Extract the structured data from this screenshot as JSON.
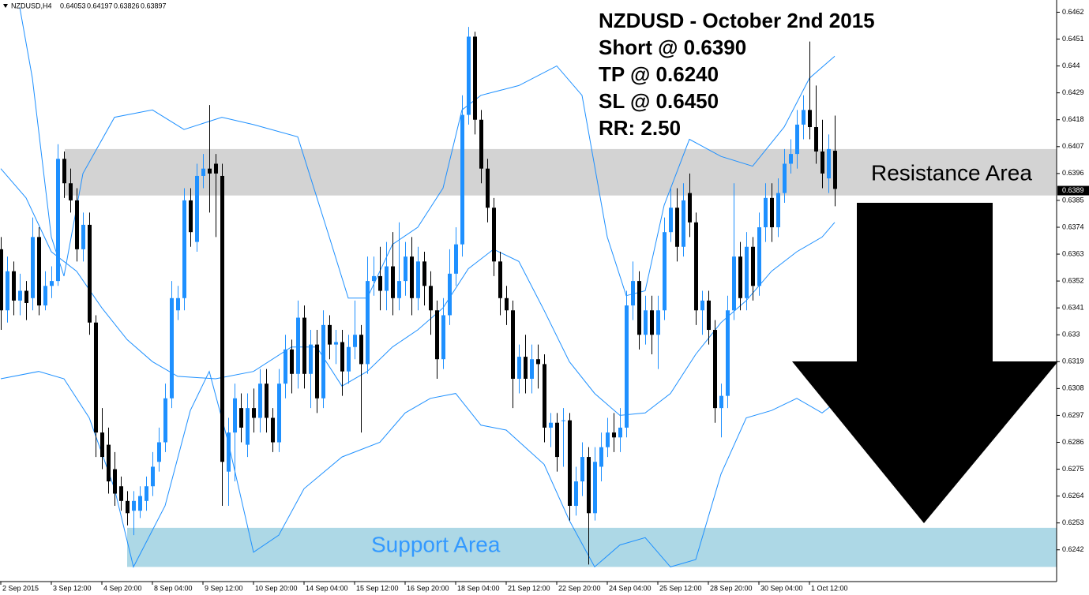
{
  "chart_data": {
    "type": "candlestick",
    "symbol": "NZDUSD,H4",
    "header_ohlc": [
      0.64053,
      0.64197,
      0.63826,
      0.63897
    ],
    "annotations": [
      "NZDUSD - October 2nd 2015",
      "Short @ 0.6390",
      "TP @ 0.6240",
      "SL @ 0.6450",
      "RR: 2.50"
    ],
    "resistance_label": "Resistance Area",
    "support_label": "Support Area",
    "resistance_zone": [
      0.6387,
      0.6406
    ],
    "support_zone": [
      0.6235,
      0.6251
    ],
    "resistance_color": "#d3d3d3",
    "support_color": "#add8e6",
    "support_label_color": "#3399ff",
    "current_price": 0.6389,
    "up_color": "#1e90ff",
    "down_color": "#000000",
    "band_color": "#1e90ff",
    "xlim": [
      -0.125,
      167.125
    ],
    "ylim": [
      0.6229,
      0.6467
    ],
    "xticks": [
      {
        "value": 0,
        "label": "2 Sep 2015"
      },
      {
        "value": 8,
        "label": "3 Sep 12:00"
      },
      {
        "value": 16,
        "label": "4 Sep 20:00"
      },
      {
        "value": 24,
        "label": "8 Sep 04:00"
      },
      {
        "value": 32,
        "label": "9 Sep 12:00"
      },
      {
        "value": 40,
        "label": "10 Sep 20:00"
      },
      {
        "value": 48,
        "label": "14 Sep 04:00"
      },
      {
        "value": 56,
        "label": "15 Sep 12:00"
      },
      {
        "value": 64,
        "label": "16 Sep 20:00"
      },
      {
        "value": 72,
        "label": "18 Sep 04:00"
      },
      {
        "value": 80,
        "label": "21 Sep 12:00"
      },
      {
        "value": 88,
        "label": "22 Sep 20:00"
      },
      {
        "value": 96,
        "label": "24 Sep 04:00"
      },
      {
        "value": 104,
        "label": "25 Sep 12:00"
      },
      {
        "value": 112,
        "label": "28 Sep 20:00"
      },
      {
        "value": 120,
        "label": "30 Sep 04:00"
      },
      {
        "value": 128,
        "label": "1 Oct 12:00"
      }
    ],
    "yticks": [
      0.6462,
      0.6451,
      0.644,
      0.6429,
      0.6418,
      0.6407,
      0.6396,
      0.6385,
      0.6374,
      0.6363,
      0.6352,
      0.6341,
      0.633,
      0.6319,
      0.6308,
      0.6297,
      0.6286,
      0.6275,
      0.6264,
      0.6253,
      0.6242
    ],
    "candles": [
      [
        0.6365,
        0.637,
        0.6332,
        0.634
      ],
      [
        0.634,
        0.6362,
        0.6335,
        0.6356
      ],
      [
        0.6356,
        0.636,
        0.6338,
        0.6344
      ],
      [
        0.6344,
        0.6355,
        0.6338,
        0.6348
      ],
      [
        0.6348,
        0.6352,
        0.6336,
        0.6343
      ],
      [
        0.6345,
        0.6378,
        0.634,
        0.637
      ],
      [
        0.637,
        0.6374,
        0.6338,
        0.6342
      ],
      [
        0.6342,
        0.6356,
        0.634,
        0.635
      ],
      [
        0.635,
        0.6358,
        0.6345,
        0.6352
      ],
      [
        0.6352,
        0.6408,
        0.635,
        0.6402
      ],
      [
        0.6402,
        0.6405,
        0.6386,
        0.6392
      ],
      [
        0.6392,
        0.6398,
        0.638,
        0.6385
      ],
      [
        0.6385,
        0.639,
        0.636,
        0.6365
      ],
      [
        0.6365,
        0.638,
        0.636,
        0.6375
      ],
      [
        0.6375,
        0.638,
        0.633,
        0.6335
      ],
      [
        0.6335,
        0.6338,
        0.628,
        0.629
      ],
      [
        0.629,
        0.63,
        0.6275,
        0.628
      ],
      [
        0.6285,
        0.6292,
        0.6265,
        0.627
      ],
      [
        0.6275,
        0.6282,
        0.626,
        0.6265
      ],
      [
        0.6268,
        0.6272,
        0.6258,
        0.6262
      ],
      [
        0.6262,
        0.6266,
        0.6252,
        0.6257
      ],
      [
        0.6258,
        0.6266,
        0.6248,
        0.6262
      ],
      [
        0.6258,
        0.6268,
        0.6255,
        0.6264
      ],
      [
        0.6262,
        0.6272,
        0.6258,
        0.6268
      ],
      [
        0.6268,
        0.6282,
        0.6264,
        0.6276
      ],
      [
        0.6278,
        0.6292,
        0.6274,
        0.6286
      ],
      [
        0.6286,
        0.631,
        0.6282,
        0.6304
      ],
      [
        0.6304,
        0.6352,
        0.63,
        0.6345
      ],
      [
        0.634,
        0.635,
        0.6336,
        0.6345
      ],
      [
        0.6345,
        0.639,
        0.634,
        0.6385
      ],
      [
        0.6385,
        0.639,
        0.6366,
        0.6372
      ],
      [
        0.6368,
        0.64,
        0.6364,
        0.6395
      ],
      [
        0.6395,
        0.6404,
        0.639,
        0.6398
      ],
      [
        0.6398,
        0.6424,
        0.638,
        0.6396
      ],
      [
        0.64,
        0.6404,
        0.637,
        0.6396
      ],
      [
        0.6395,
        0.64,
        0.626,
        0.6278
      ],
      [
        0.6274,
        0.6296,
        0.626,
        0.629
      ],
      [
        0.629,
        0.631,
        0.627,
        0.6304
      ],
      [
        0.63,
        0.6306,
        0.6286,
        0.6292
      ],
      [
        0.6285,
        0.6306,
        0.628,
        0.63
      ],
      [
        0.63,
        0.6308,
        0.629,
        0.6296
      ],
      [
        0.6296,
        0.6316,
        0.629,
        0.631
      ],
      [
        0.631,
        0.6316,
        0.629,
        0.6296
      ],
      [
        0.6296,
        0.63,
        0.6282,
        0.6286
      ],
      [
        0.6286,
        0.6316,
        0.6282,
        0.631
      ],
      [
        0.631,
        0.633,
        0.6304,
        0.6324
      ],
      [
        0.6324,
        0.6328,
        0.6306,
        0.6314
      ],
      [
        0.6314,
        0.6344,
        0.6308,
        0.6337
      ],
      [
        0.6337,
        0.6342,
        0.6308,
        0.6314
      ],
      [
        0.6314,
        0.6332,
        0.63,
        0.6326
      ],
      [
        0.6326,
        0.6332,
        0.6298,
        0.6304
      ],
      [
        0.6304,
        0.634,
        0.63,
        0.6334
      ],
      [
        0.6334,
        0.6338,
        0.632,
        0.6326
      ],
      [
        0.6326,
        0.6332,
        0.6318,
        0.6327
      ],
      [
        0.6327,
        0.6332,
        0.6305,
        0.6315
      ],
      [
        0.6315,
        0.633,
        0.631,
        0.6325
      ],
      [
        0.6325,
        0.6344,
        0.632,
        0.633
      ],
      [
        0.633,
        0.6334,
        0.629,
        0.6318
      ],
      [
        0.6318,
        0.6362,
        0.6314,
        0.6352
      ],
      [
        0.6352,
        0.6362,
        0.6346,
        0.6354
      ],
      [
        0.6354,
        0.6366,
        0.634,
        0.6348
      ],
      [
        0.6348,
        0.6368,
        0.634,
        0.6358
      ],
      [
        0.6358,
        0.6372,
        0.6338,
        0.6345
      ],
      [
        0.6345,
        0.6376,
        0.634,
        0.6352
      ],
      [
        0.6352,
        0.6368,
        0.6346,
        0.6362
      ],
      [
        0.6362,
        0.637,
        0.6338,
        0.6345
      ],
      [
        0.6345,
        0.6366,
        0.634,
        0.636
      ],
      [
        0.636,
        0.6364,
        0.6342,
        0.635
      ],
      [
        0.635,
        0.6356,
        0.633,
        0.634
      ],
      [
        0.634,
        0.6344,
        0.6312,
        0.632
      ],
      [
        0.632,
        0.6345,
        0.6316,
        0.6338
      ],
      [
        0.6338,
        0.6365,
        0.6334,
        0.6355
      ],
      [
        0.6355,
        0.6374,
        0.635,
        0.6367
      ],
      [
        0.6367,
        0.6428,
        0.6362,
        0.642
      ],
      [
        0.642,
        0.6456,
        0.6416,
        0.6452
      ],
      [
        0.6452,
        0.6454,
        0.6412,
        0.6418
      ],
      [
        0.6418,
        0.6422,
        0.6392,
        0.6398
      ],
      [
        0.6398,
        0.6402,
        0.6376,
        0.6382
      ],
      [
        0.6382,
        0.6386,
        0.6354,
        0.636
      ],
      [
        0.636,
        0.6364,
        0.6338,
        0.6345
      ],
      [
        0.6345,
        0.635,
        0.6334,
        0.634
      ],
      [
        0.634,
        0.6344,
        0.63,
        0.6312
      ],
      [
        0.6312,
        0.6326,
        0.6306,
        0.6321
      ],
      [
        0.6321,
        0.633,
        0.6306,
        0.6312
      ],
      [
        0.6312,
        0.6326,
        0.6306,
        0.632
      ],
      [
        0.632,
        0.6326,
        0.6308,
        0.6318
      ],
      [
        0.6318,
        0.6322,
        0.6286,
        0.6292
      ],
      [
        0.6292,
        0.6298,
        0.6284,
        0.6294
      ],
      [
        0.6294,
        0.6298,
        0.6274,
        0.628
      ],
      [
        0.6295,
        0.63,
        0.6276,
        0.6295
      ],
      [
        0.6295,
        0.6298,
        0.6254,
        0.626
      ],
      [
        0.626,
        0.6276,
        0.6256,
        0.627
      ],
      [
        0.627,
        0.6286,
        0.6264,
        0.628
      ],
      [
        0.628,
        0.6284,
        0.6236,
        0.6257
      ],
      [
        0.6257,
        0.6284,
        0.6254,
        0.6278
      ],
      [
        0.6276,
        0.629,
        0.627,
        0.6284
      ],
      [
        0.6284,
        0.6296,
        0.628,
        0.629
      ],
      [
        0.629,
        0.6298,
        0.6282,
        0.6288
      ],
      [
        0.6288,
        0.63,
        0.6282,
        0.6292
      ],
      [
        0.6292,
        0.6348,
        0.6288,
        0.6342
      ],
      [
        0.6342,
        0.636,
        0.6336,
        0.6352
      ],
      [
        0.6352,
        0.6356,
        0.6324,
        0.633
      ],
      [
        0.633,
        0.6346,
        0.6326,
        0.634
      ],
      [
        0.634,
        0.6346,
        0.6322,
        0.633
      ],
      [
        0.633,
        0.6346,
        0.6316,
        0.634
      ],
      [
        0.634,
        0.6378,
        0.6336,
        0.6372
      ],
      [
        0.6372,
        0.639,
        0.6368,
        0.6382
      ],
      [
        0.6382,
        0.639,
        0.636,
        0.6366
      ],
      [
        0.6366,
        0.6392,
        0.6362,
        0.6385
      ],
      [
        0.6388,
        0.6396,
        0.637,
        0.6376
      ],
      [
        0.6376,
        0.638,
        0.6334,
        0.634
      ],
      [
        0.634,
        0.6348,
        0.633,
        0.6344
      ],
      [
        0.6344,
        0.6348,
        0.6326,
        0.6332
      ],
      [
        0.6332,
        0.6336,
        0.6294,
        0.63
      ],
      [
        0.63,
        0.631,
        0.6288,
        0.6305
      ],
      [
        0.6305,
        0.6346,
        0.63,
        0.634
      ],
      [
        0.634,
        0.6392,
        0.6336,
        0.6362
      ],
      [
        0.6362,
        0.6368,
        0.634,
        0.6345
      ],
      [
        0.6345,
        0.6372,
        0.634,
        0.6366
      ],
      [
        0.6366,
        0.637,
        0.6344,
        0.635
      ],
      [
        0.635,
        0.638,
        0.6346,
        0.6374
      ],
      [
        0.6374,
        0.6392,
        0.6368,
        0.6386
      ],
      [
        0.6386,
        0.6392,
        0.6368,
        0.6374
      ],
      [
        0.6374,
        0.6394,
        0.637,
        0.6388
      ],
      [
        0.6388,
        0.6406,
        0.6384,
        0.64
      ],
      [
        0.64,
        0.641,
        0.6396,
        0.6404
      ],
      [
        0.6404,
        0.6422,
        0.6398,
        0.6416
      ],
      [
        0.6416,
        0.6428,
        0.641,
        0.6422
      ],
      [
        0.6422,
        0.645,
        0.641,
        0.6415
      ],
      [
        0.6415,
        0.6432,
        0.64,
        0.6405
      ],
      [
        0.6405,
        0.6418,
        0.639,
        0.6396
      ],
      [
        0.6394,
        0.6412,
        0.6388,
        0.6406
      ],
      [
        0.64053,
        0.64197,
        0.63826,
        0.63897
      ]
    ],
    "bands": [
      {
        "x": [
          3,
          5,
          8,
          10,
          13,
          18,
          24,
          29,
          35,
          40,
          47,
          52,
          55,
          58,
          62,
          66,
          70,
          73,
          76,
          82,
          88,
          92,
          96,
          99,
          102,
          105,
          109,
          114,
          119,
          124,
          128,
          132
        ],
        "values": [
          0.6464,
          0.6435,
          0.637,
          0.6354,
          0.6396,
          0.6419,
          0.6422,
          0.6414,
          0.6419,
          0.6416,
          0.6411,
          0.637,
          0.6345,
          0.6345,
          0.6367,
          0.6374,
          0.639,
          0.6422,
          0.6428,
          0.6432,
          0.644,
          0.6428,
          0.637,
          0.6346,
          0.6348,
          0.6383,
          0.641,
          0.6403,
          0.6399,
          0.6415,
          0.6435,
          0.6444
        ]
      },
      {
        "x": [
          0,
          4,
          8,
          12,
          16,
          20,
          24,
          28,
          34,
          40,
          46,
          50,
          54,
          58,
          62,
          66,
          70,
          74,
          78,
          82,
          86,
          90,
          94,
          98,
          102,
          106,
          110,
          114,
          118,
          122,
          126,
          130,
          132
        ],
        "values": [
          0.6398,
          0.6386,
          0.6364,
          0.6356,
          0.6341,
          0.6328,
          0.6319,
          0.6313,
          0.6312,
          0.6315,
          0.6325,
          0.6325,
          0.6309,
          0.6315,
          0.6325,
          0.6332,
          0.6341,
          0.6357,
          0.6365,
          0.636,
          0.634,
          0.6319,
          0.6306,
          0.6297,
          0.6298,
          0.6306,
          0.6322,
          0.6335,
          0.6344,
          0.6356,
          0.6364,
          0.637,
          0.6376
        ]
      },
      {
        "x": [
          0,
          6,
          10,
          14,
          18,
          21,
          26,
          30,
          33,
          36,
          40,
          44,
          48,
          54,
          60,
          64,
          68,
          72,
          76,
          80,
          86,
          90,
          94,
          98,
          102,
          106,
          110,
          114,
          118,
          122,
          126,
          130,
          132
        ],
        "values": [
          0.6312,
          0.6315,
          0.6312,
          0.6296,
          0.6267,
          0.6235,
          0.626,
          0.6299,
          0.6315,
          0.6286,
          0.6241,
          0.6248,
          0.6267,
          0.628,
          0.6286,
          0.6298,
          0.6304,
          0.6306,
          0.6293,
          0.6291,
          0.6277,
          0.6254,
          0.6235,
          0.6244,
          0.6247,
          0.6235,
          0.6238,
          0.6273,
          0.6296,
          0.6299,
          0.6304,
          0.6298,
          0.6302
        ]
      }
    ]
  }
}
